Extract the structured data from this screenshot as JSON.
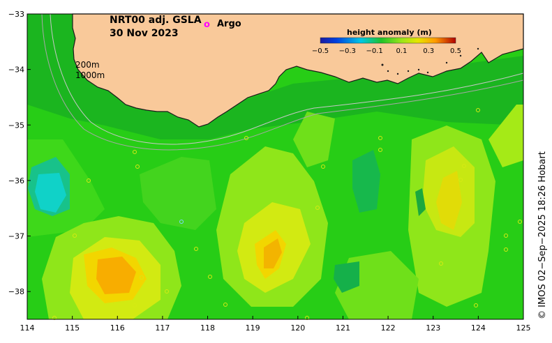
{
  "title": {
    "line1": "NRT00 adj. GSLA",
    "line2": "30 Nov 2023"
  },
  "legend": {
    "argo_marker": "o",
    "argo_label": "Argo",
    "colorbar_title": "height anomaly (m)",
    "colorbar_ticks": [
      "−0.5",
      "−0.3",
      "−0.1",
      "0.1",
      "0.3",
      "0.5"
    ],
    "colors": {
      "deep_negative": "#1a1aa0",
      "negative": "#00c8e6",
      "near_zero": "#1fc22a",
      "positive": "#e6e600",
      "high_positive": "#ff9a00",
      "extreme": "#b00000"
    }
  },
  "isobaths": {
    "label_200": "200m",
    "label_1000": "1000m"
  },
  "axes": {
    "x_ticks": [
      "114",
      "115",
      "116",
      "117",
      "118",
      "119",
      "120",
      "121",
      "122",
      "123",
      "124",
      "125"
    ],
    "y_ticks": [
      "−33",
      "−34",
      "−35",
      "−36",
      "−37",
      "−38"
    ],
    "lon_range": [
      114,
      125
    ],
    "lat_range": [
      -38.5,
      -33
    ]
  },
  "credit": "© IMOS 02−Sep−2025 18:26 Hobart",
  "colors": {
    "land": "#f9c99a",
    "sea_base": "#27cd16"
  }
}
